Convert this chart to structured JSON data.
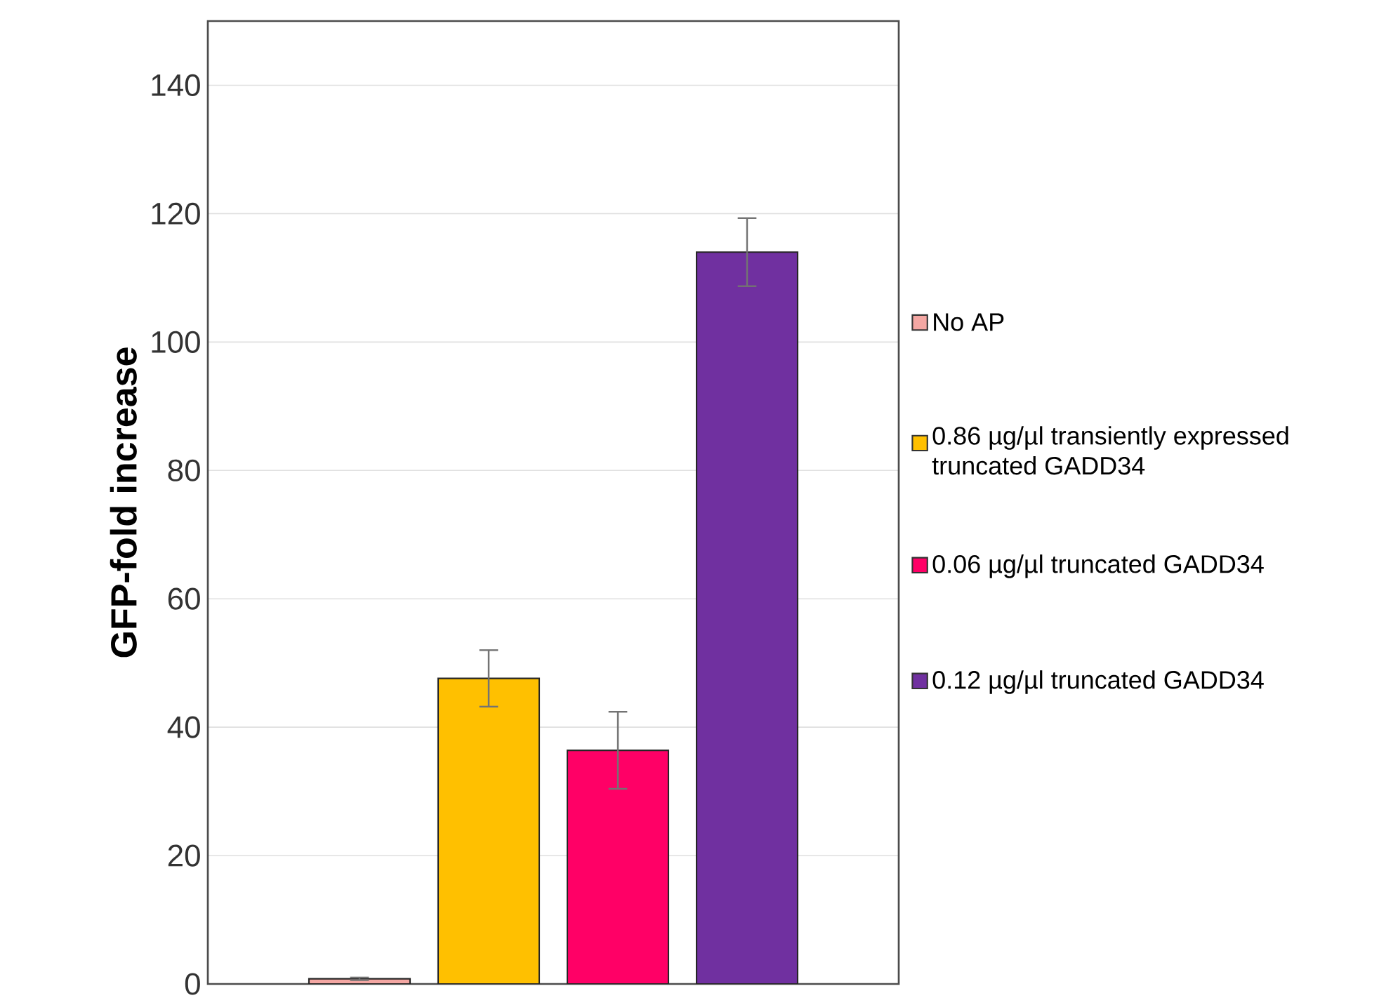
{
  "chart_data": {
    "type": "bar",
    "ylabel": "GFP-fold increase",
    "categories": [
      null
    ],
    "series": [
      {
        "name": "No AP",
        "color": "#f4a7a3",
        "values": [
          0.8
        ],
        "errors": [
          0.2
        ]
      },
      {
        "name": "0.86 µg/µl transiently expressed truncated GADD34",
        "color": "#ffc000",
        "values": [
          47.6
        ],
        "errors": [
          4.4
        ]
      },
      {
        "name": "0.06 µg/µl truncated GADD34",
        "color": "#ff0066",
        "values": [
          36.4
        ],
        "errors": [
          6
        ]
      },
      {
        "name": "0.12 µg/µl truncated GADD34",
        "color": "#7030a0",
        "values": [
          114
        ],
        "errors": [
          5.3
        ]
      }
    ],
    "ylim": [
      0,
      150
    ],
    "yticks": [
      0,
      20,
      40,
      60,
      80,
      100,
      120,
      140
    ],
    "grid": "y",
    "legend": "right",
    "tick_labels": "y"
  }
}
